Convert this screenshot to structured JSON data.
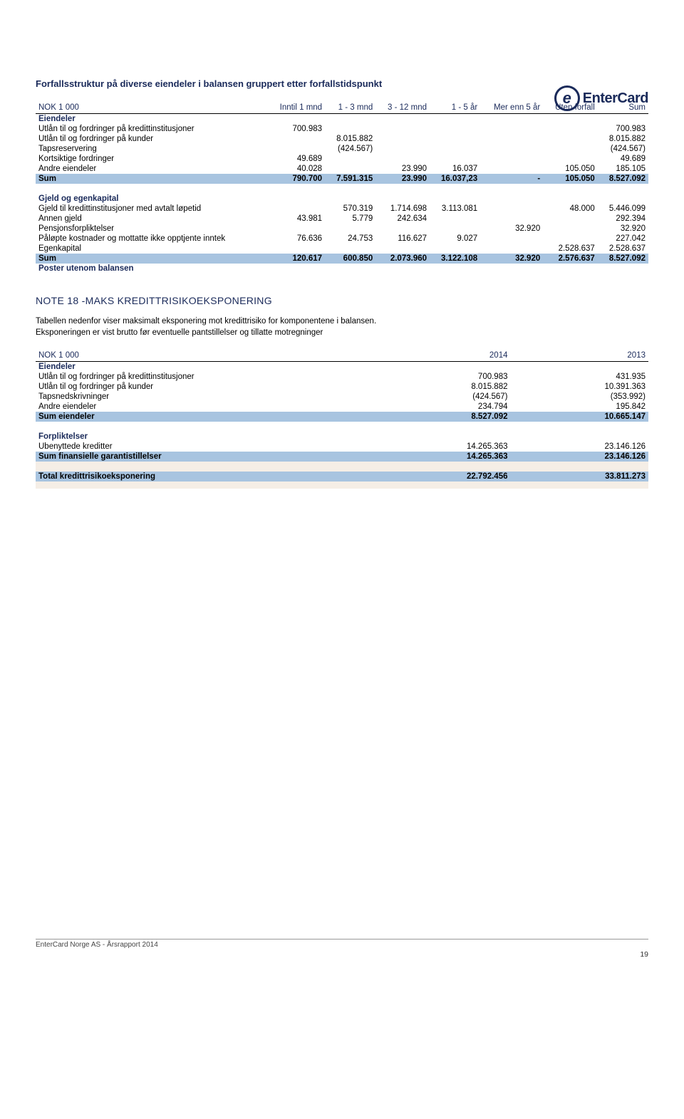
{
  "logo": {
    "mark": "e",
    "text": "EnterCard"
  },
  "title1": "Forfallsstruktur på diverse eiendeler i balansen gruppert etter forfallstidspunkt",
  "table1": {
    "headers": [
      "NOK 1 000",
      "Inntil 1 mnd",
      "1 - 3 mnd",
      "3 - 12 mnd",
      "1 - 5 år",
      "Mer enn 5 år",
      "Uten forfall",
      "Sum"
    ],
    "section1": "Eiendeler",
    "rows1": [
      {
        "label": "Utlån til og fordringer på kredittinstitusjoner",
        "c1": "700.983",
        "c2": "",
        "c3": "",
        "c4": "",
        "c5": "",
        "c6": "",
        "sum": "700.983"
      },
      {
        "label": "Utlån til og fordringer på kunder",
        "c1": "",
        "c2": "8.015.882",
        "c3": "",
        "c4": "",
        "c5": "",
        "c6": "",
        "sum": "8.015.882"
      },
      {
        "label": "Tapsreservering",
        "c1": "",
        "c2": "(424.567)",
        "c3": "",
        "c4": "",
        "c5": "",
        "c6": "",
        "sum": "(424.567)"
      },
      {
        "label": "Kortsiktige fordringer",
        "c1": "49.689",
        "c2": "",
        "c3": "",
        "c4": "",
        "c5": "",
        "c6": "",
        "sum": "49.689"
      },
      {
        "label": "Andre eiendeler",
        "c1": "40.028",
        "c2": "",
        "c3": "23.990",
        "c4": "16.037",
        "c5": "",
        "c6": "105.050",
        "sum": "185.105"
      }
    ],
    "sum1": {
      "label": "Sum",
      "c1": "790.700",
      "c2": "7.591.315",
      "c3": "23.990",
      "c4": "16.037,23",
      "c5": "-",
      "c6": "105.050",
      "sum": "8.527.092"
    },
    "section2": "Gjeld og egenkapital",
    "rows2": [
      {
        "label": "Gjeld til kredittinstitusjoner med avtalt løpetid",
        "c1": "",
        "c2": "570.319",
        "c3": "1.714.698",
        "c4": "3.113.081",
        "c5": "",
        "c6": "48.000",
        "sum": "5.446.099"
      },
      {
        "label": "Annen gjeld",
        "c1": "43.981",
        "c2": "5.779",
        "c3": "242.634",
        "c4": "",
        "c5": "",
        "c6": "",
        "sum": "292.394"
      },
      {
        "label": "Pensjonsforpliktelser",
        "c1": "",
        "c2": "",
        "c3": "",
        "c4": "",
        "c5": "32.920",
        "c6": "",
        "sum": "32.920"
      },
      {
        "label": "Påløpte kostnader og mottatte ikke opptjente inntek",
        "c1": "76.636",
        "c2": "24.753",
        "c3": "116.627",
        "c4": "9.027",
        "c5": "",
        "c6": "",
        "sum": "227.042"
      },
      {
        "label": "Egenkapital",
        "c1": "",
        "c2": "",
        "c3": "",
        "c4": "",
        "c5": "",
        "c6": "2.528.637",
        "sum": "2.528.637"
      }
    ],
    "sum2": {
      "label": "Sum",
      "c1": "120.617",
      "c2": "600.850",
      "c3": "2.073.960",
      "c4": "3.122.108",
      "c5": "32.920",
      "c6": "2.576.637",
      "sum": "8.527.092"
    },
    "outside": "Poster utenom balansen"
  },
  "note18": {
    "title": "NOTE 18 -MAKS KREDITTRISIKOEKSPONERING",
    "desc1": "Tabellen nedenfor viser maksimalt eksponering mot kredittrisiko for komponentene i balansen.",
    "desc2": "Eksponeringen er vist brutto før eventuelle pantstillelser og tillatte motregninger"
  },
  "table2": {
    "headers": [
      "NOK 1 000",
      "2014",
      "2013"
    ],
    "section1": "Eiendeler",
    "rows1": [
      {
        "label": "Utlån til og fordringer på kredittinstitusjoner",
        "c1": "700.983",
        "c2": "431.935"
      },
      {
        "label": "Utlån til og fordringer på kunder",
        "c1": "8.015.882",
        "c2": "10.391.363"
      },
      {
        "label": "Tapsnedskrivninger",
        "c1": "(424.567)",
        "c2": "(353.992)"
      },
      {
        "label": "Andre eiendeler",
        "c1": "234.794",
        "c2": "195.842"
      }
    ],
    "sum1": {
      "label": "Sum eiendeler",
      "c1": "8.527.092",
      "c2": "10.665.147"
    },
    "section2": "Forpliktelser",
    "rows2": [
      {
        "label": "Ubenyttede kreditter",
        "c1": "14.265.363",
        "c2": "23.146.126"
      }
    ],
    "sum2": {
      "label": "Sum finansielle garantistillelser",
      "c1": "14.265.363",
      "c2": "23.146.126"
    },
    "total": {
      "label": "Total kredittrisikoeksponering",
      "c1": "22.792.456",
      "c2": "33.811.273"
    }
  },
  "footer": {
    "text": "EnterCard Norge AS - Årsrapport 2014",
    "page": "19"
  }
}
